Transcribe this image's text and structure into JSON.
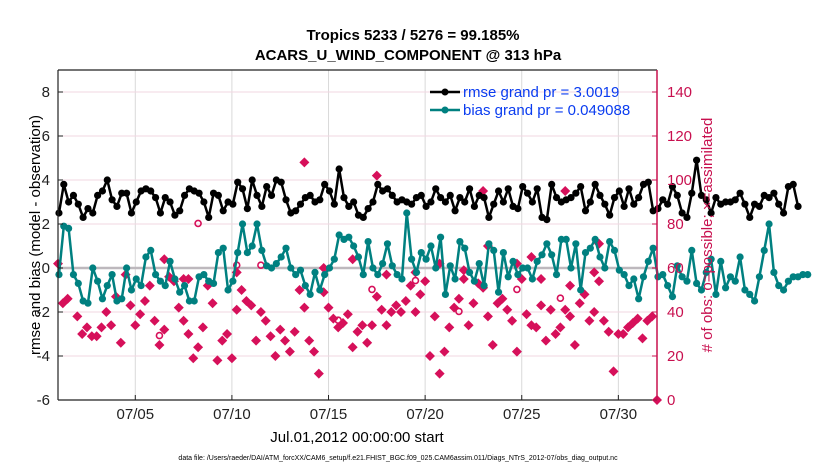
{
  "chart_data": {
    "type": "line",
    "title": [
      "Tropics 5233 / 5276 = 99.185%",
      "ACARS_U_WIND_COMPONENT @ 313 hPa"
    ],
    "xlabel": "Jul.01,2012 00:00:00 start",
    "ylabel_left": "rmse and bias (model - observation)",
    "ylabel_right": "# of obs: o=possible; ×=assimilated",
    "footnote": "data file: /Users/raeder/DAI/ATM_forcXX/CAM6_setup/f.e21.FHIST_BGC.f09_025.CAM6assim.011/Diags_NTrS_2012-07/obs_diag_output.nc",
    "x_unit": "day of July 2012",
    "xlim": [
      1,
      32
    ],
    "x_ticks": [
      5,
      10,
      15,
      20,
      25,
      30
    ],
    "x_tick_labels": [
      "07/05",
      "07/10",
      "07/15",
      "07/20",
      "07/25",
      "07/30"
    ],
    "ylim_left": [
      -6,
      9
    ],
    "y_ticks_left": [
      -6,
      -4,
      -2,
      0,
      2,
      4,
      6,
      8
    ],
    "ylim_right": [
      0,
      150
    ],
    "y_ticks_right": [
      0,
      20,
      40,
      60,
      80,
      100,
      120,
      140
    ],
    "grid": true,
    "legend_position": "top-right",
    "colors": {
      "rmse": "#000000",
      "bias": "#008080",
      "obs": "#d6105a",
      "axis_right": "#c8104f",
      "zero_line": "#bdb8bd",
      "legend_text": "#0a3cf0",
      "grid_v": "#d9d9d9",
      "grid_h": "#f2d7e2"
    },
    "legend": [
      {
        "name": "rmse grand pr = 3.0019",
        "series": "rmse"
      },
      {
        "name": "bias grand pr = 0.049088",
        "series": "bias"
      }
    ],
    "time_step_days": 0.25,
    "series": [
      {
        "name": "rmse",
        "axis": "left",
        "values": [
          2.5,
          3.8,
          3.0,
          3.3,
          2.9,
          2.3,
          2.7,
          2.5,
          3.3,
          3.5,
          4.0,
          3.1,
          2.8,
          3.4,
          3.4,
          2.5,
          3.0,
          3.5,
          3.6,
          3.5,
          3.2,
          2.5,
          3.2,
          3.0,
          2.4,
          2.6,
          3.3,
          3.6,
          3.5,
          3.4,
          3.0,
          2.3,
          3.4,
          3.3,
          2.6,
          3.0,
          2.9,
          3.9,
          3.6,
          2.7,
          4.0,
          3.3,
          2.8,
          3.7,
          3.3,
          4.0,
          3.9,
          3.1,
          2.5,
          2.6,
          2.9,
          3.2,
          3.3,
          3.0,
          3.1,
          3.8,
          3.5,
          2.9,
          4.5,
          3.2,
          2.8,
          3.0,
          2.4,
          2.3,
          2.7,
          3.0,
          3.8,
          3.5,
          3.6,
          3.3,
          3.0,
          3.1,
          3.0,
          2.9,
          3.2,
          3.3,
          2.8,
          3.0,
          3.6,
          3.2,
          3.0,
          3.3,
          2.6,
          3.2,
          3.0,
          3.6,
          2.8,
          3.3,
          3.2,
          2.3,
          2.9,
          3.5,
          3.0,
          3.6,
          2.8,
          2.7,
          3.7,
          3.4,
          3.0,
          3.6,
          2.3,
          2.2,
          3.8,
          3.2,
          3.0,
          3.1,
          3.2,
          3.4,
          3.7,
          2.6,
          3.0,
          3.8,
          3.3,
          2.9,
          2.4,
          3.2,
          3.5,
          2.8,
          3.6,
          2.9,
          3.2,
          3.8,
          3.9,
          2.6,
          2.7,
          3.1,
          2.9,
          3.7,
          3.3,
          2.5,
          2.3,
          3.4,
          4.9,
          3.3,
          3.1,
          2.5,
          3.2,
          2.9,
          3.0,
          3.0,
          3.1,
          3.4,
          2.9,
          2.3,
          2.9,
          2.8,
          3.3,
          3.2,
          3.4,
          2.9,
          2.5,
          3.7,
          3.8,
          2.8
        ]
      },
      {
        "name": "bias",
        "axis": "left",
        "values": [
          -0.3,
          1.9,
          1.8,
          -0.3,
          -0.7,
          -1.5,
          -1.6,
          0.0,
          -0.6,
          -1.4,
          -0.8,
          -0.3,
          -1.5,
          -1.4,
          0.0,
          -1.0,
          -0.5,
          -0.8,
          0.5,
          0.8,
          -0.3,
          -0.6,
          -0.8,
          0.3,
          -0.5,
          -1.1,
          -0.8,
          -1.5,
          -1.5,
          -0.4,
          -0.3,
          -0.6,
          -0.7,
          0.7,
          0.9,
          -1.0,
          -0.6,
          0.7,
          2.0,
          0.7,
          1.0,
          2.0,
          0.8,
          0.1,
          0.0,
          0.2,
          0.5,
          0.9,
          0.0,
          -0.3,
          -0.1,
          -0.8,
          -1.2,
          -0.2,
          -1.0,
          -0.3,
          0.0,
          0.4,
          1.5,
          1.3,
          1.4,
          1.0,
          0.5,
          -0.3,
          1.2,
          0.0,
          -0.3,
          0.2,
          1.1,
          0.1,
          -0.3,
          -0.5,
          2.5,
          0.4,
          -0.2,
          0.7,
          0.4,
          1.0,
          0.0,
          1.4,
          -1.2,
          0.1,
          -0.5,
          1.2,
          0.9,
          -0.2,
          -0.6,
          0.2,
          -0.8,
          1.1,
          0.8,
          -1.1,
          0.7,
          -0.4,
          0.3,
          -0.3,
          0.0,
          0.0,
          -0.5,
          0.3,
          0.6,
          1.1,
          0.6,
          -0.3,
          1.3,
          1.3,
          0.0,
          1.1,
          -1.0,
          0.7,
          0.9,
          1.3,
          0.5,
          0.0,
          1.2,
          0.8,
          -0.1,
          -0.3,
          -0.8,
          -0.5,
          -1.4,
          -0.4,
          0.3,
          0.9,
          -0.4,
          -0.3,
          -0.8,
          -1.3,
          0.1,
          -0.4,
          -0.6,
          0.8,
          -0.7,
          -1.0,
          -0.2,
          0.4,
          -1.2,
          0.3,
          -0.9,
          -0.4,
          -0.6,
          0.5,
          -1.0,
          -1.2,
          -1.5,
          -0.4,
          0.8,
          2.0,
          -0.2,
          -0.8,
          -1.0,
          -0.6,
          -0.4,
          -0.4,
          -0.3,
          -0.3
        ]
      }
    ],
    "obs_assimilated": {
      "name": "assimilated obs count",
      "axis": "right",
      "marker": "asterisk",
      "points": [
        [
          1.0,
          62
        ],
        [
          1.25,
          44
        ],
        [
          1.5,
          46
        ],
        [
          2.0,
          38
        ],
        [
          2.25,
          30
        ],
        [
          2.5,
          33
        ],
        [
          2.75,
          29
        ],
        [
          3.0,
          29
        ],
        [
          3.25,
          33
        ],
        [
          3.5,
          40
        ],
        [
          3.75,
          34
        ],
        [
          4.0,
          47
        ],
        [
          4.25,
          26
        ],
        [
          4.5,
          57
        ],
        [
          4.75,
          43
        ],
        [
          5.0,
          34
        ],
        [
          5.25,
          39
        ],
        [
          5.5,
          45
        ],
        [
          5.75,
          52
        ],
        [
          6.0,
          36
        ],
        [
          6.25,
          25
        ],
        [
          6.5,
          32
        ],
        [
          6.75,
          56
        ],
        [
          7.0,
          54
        ],
        [
          7.25,
          42
        ],
        [
          7.5,
          36
        ],
        [
          7.75,
          30
        ],
        [
          8.0,
          19
        ],
        [
          8.25,
          24
        ],
        [
          8.5,
          33
        ],
        [
          8.75,
          52
        ],
        [
          9.0,
          44
        ],
        [
          9.25,
          18
        ],
        [
          9.5,
          27
        ],
        [
          9.75,
          30
        ],
        [
          10.0,
          19
        ],
        [
          10.25,
          41
        ],
        [
          10.5,
          50
        ],
        [
          10.75,
          45
        ],
        [
          11.0,
          43
        ],
        [
          11.25,
          27
        ],
        [
          11.5,
          40
        ],
        [
          11.75,
          36
        ],
        [
          12.0,
          29
        ],
        [
          12.25,
          20
        ],
        [
          12.5,
          32
        ],
        [
          12.75,
          27
        ],
        [
          13.0,
          22
        ],
        [
          13.25,
          31
        ],
        [
          13.5,
          50
        ],
        [
          13.75,
          42
        ],
        [
          14.0,
          27
        ],
        [
          14.25,
          22
        ],
        [
          14.5,
          12
        ],
        [
          14.75,
          49
        ],
        [
          15.0,
          42
        ],
        [
          15.25,
          37
        ],
        [
          15.5,
          33
        ],
        [
          15.75,
          35
        ],
        [
          16.0,
          39
        ],
        [
          16.25,
          24
        ],
        [
          16.5,
          31
        ],
        [
          16.75,
          34
        ],
        [
          17.0,
          26
        ],
        [
          17.25,
          34
        ],
        [
          17.5,
          47
        ],
        [
          17.75,
          41
        ],
        [
          18.0,
          34
        ],
        [
          18.25,
          40
        ],
        [
          18.5,
          43
        ],
        [
          18.75,
          40
        ],
        [
          19.0,
          45
        ],
        [
          19.25,
          52
        ],
        [
          19.5,
          40
        ],
        [
          19.75,
          48
        ],
        [
          20.0,
          54
        ],
        [
          20.25,
          20
        ],
        [
          20.5,
          38
        ],
        [
          20.75,
          12
        ],
        [
          21.0,
          22
        ],
        [
          21.25,
          33
        ],
        [
          21.5,
          42
        ],
        [
          21.75,
          46
        ],
        [
          22.0,
          55
        ],
        [
          22.25,
          34
        ],
        [
          22.5,
          44
        ],
        [
          22.75,
          53
        ],
        [
          23.0,
          51
        ],
        [
          23.25,
          38
        ],
        [
          23.5,
          25
        ],
        [
          23.75,
          44
        ],
        [
          24.0,
          46
        ],
        [
          24.25,
          41
        ],
        [
          24.5,
          36
        ],
        [
          24.75,
          22
        ],
        [
          25.0,
          55
        ],
        [
          25.25,
          39
        ],
        [
          25.5,
          34
        ],
        [
          25.75,
          33
        ],
        [
          26.0,
          43
        ],
        [
          26.25,
          27
        ],
        [
          26.5,
          41
        ],
        [
          26.75,
          30
        ],
        [
          27.0,
          33
        ],
        [
          27.25,
          41
        ],
        [
          27.5,
          38
        ],
        [
          27.75,
          25
        ],
        [
          28.0,
          44
        ],
        [
          28.25,
          48
        ],
        [
          28.5,
          36
        ],
        [
          28.75,
          40
        ],
        [
          29.0,
          54
        ],
        [
          29.25,
          36
        ],
        [
          29.5,
          31
        ],
        [
          29.75,
          13
        ],
        [
          30.0,
          30
        ],
        [
          30.25,
          30
        ],
        [
          30.5,
          33
        ],
        [
          30.75,
          35
        ],
        [
          31.0,
          37
        ],
        [
          31.25,
          28
        ],
        [
          31.5,
          36
        ],
        [
          31.75,
          38
        ],
        [
          32.0,
          0
        ]
      ]
    },
    "obs_highlight": {
      "name": "possible obs count (high outliers)",
      "axis": "right",
      "marker": "diamond",
      "points": [
        [
          7.5,
          55
        ],
        [
          7.75,
          55
        ],
        [
          13.75,
          108
        ],
        [
          17.5,
          102
        ],
        [
          23.0,
          95
        ],
        [
          27.25,
          95
        ],
        [
          16.25,
          64
        ],
        [
          14.75,
          60
        ],
        [
          24.75,
          62
        ],
        [
          28.75,
          58
        ],
        [
          10.25,
          58
        ],
        [
          6.5,
          64
        ],
        [
          18.0,
          57
        ],
        [
          19.5,
          58
        ],
        [
          20.75,
          62
        ],
        [
          22.0,
          59
        ],
        [
          23.25,
          70
        ],
        [
          25.5,
          65
        ],
        [
          26.0,
          55
        ],
        [
          27.5,
          52
        ],
        [
          29.0,
          71
        ]
      ]
    },
    "obs_possible": {
      "name": "possible obs count",
      "axis": "right",
      "marker": "circle-open",
      "points": [
        [
          6.25,
          27
        ],
        [
          8.25,
          78
        ],
        [
          10.25,
          59
        ],
        [
          11.5,
          59
        ],
        [
          15.5,
          34
        ],
        [
          17.25,
          48
        ],
        [
          19.5,
          52
        ],
        [
          21.75,
          38
        ],
        [
          24.75,
          48
        ],
        [
          27.0,
          44
        ]
      ]
    }
  }
}
